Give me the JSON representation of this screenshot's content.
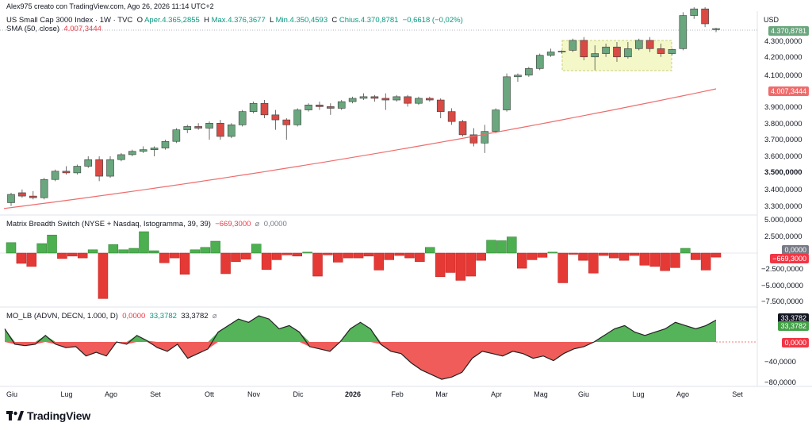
{
  "credit": "Alex975 creato con TradingView.com, Ago 26, 2026 11:14 UTC+2",
  "currency": "USD",
  "price_legend": {
    "title": "US Small Cap 3000 Index · 1W · TVC",
    "o_label": "O",
    "o_text": "Aper.4.365,2855",
    "h_label": "H",
    "h_text": "Max.4.376,3677",
    "l_label": "L",
    "l_text": "Min.4.350,4593",
    "c_label": "C",
    "c_text": "Chius.4.370,8781",
    "change": "−0,6618 (−0,02%)",
    "sma_label": "SMA (50, close)",
    "sma_value": "4.007,3444"
  },
  "breadth_legend": {
    "title": "Matrix Breadth Switch (NYSE + Nasdaq, Istogramma, 39, 39)",
    "value1": "−669,3000",
    "sym": "⌀",
    "value2": "0,0000"
  },
  "mo_legend": {
    "title": "MO_LB (ADVN, DECN, 1.000, D)",
    "value1": "0,0000",
    "value2": "33,3782",
    "value3": "33,3782",
    "sym": "⌀"
  },
  "price_axis": [
    "4.300,0000",
    "4.200,0000",
    "4.100,0000",
    "3.900,0000",
    "3.800,0000",
    "3.700,0000",
    "3.600,0000",
    "3.500,0000",
    "3.400,0000",
    "3.300,0000"
  ],
  "price_tags": {
    "last": "4.370,8781",
    "sma": "4.007,3444"
  },
  "breadth_axis": [
    "5.000,0000",
    "2.500,0000",
    "−2.500,0000",
    "−5.000,0000",
    "−7.500,0000"
  ],
  "breadth_tags": {
    "zero": "0,0000",
    "last": "−669,3000"
  },
  "mo_axis": [
    "−40,0000",
    "−80,0000"
  ],
  "mo_tags": {
    "a": "33,3782",
    "b": "33,3782",
    "zero": "0,0000"
  },
  "x_labels": [
    {
      "text": "Giu",
      "bold": false
    },
    {
      "text": "Lug",
      "bold": false
    },
    {
      "text": "Ago",
      "bold": false
    },
    {
      "text": "Set",
      "bold": false
    },
    {
      "text": "Ott",
      "bold": false
    },
    {
      "text": "Nov",
      "bold": false
    },
    {
      "text": "Dic",
      "bold": false
    },
    {
      "text": "2026",
      "bold": true
    },
    {
      "text": "Feb",
      "bold": false
    },
    {
      "text": "Mar",
      "bold": false
    },
    {
      "text": "Apr",
      "bold": false
    },
    {
      "text": "Mag",
      "bold": false
    },
    {
      "text": "Giu",
      "bold": false
    },
    {
      "text": "Lug",
      "bold": false
    },
    {
      "text": "Ago",
      "bold": false
    },
    {
      "text": "Set",
      "bold": false
    }
  ],
  "logo_text": "TradingView",
  "colors": {
    "up": "#6aa67e",
    "down": "#d94a45",
    "sma": "#ef6c6c",
    "highlight": "#f5f7c4",
    "mo_up": "#4caf50",
    "mo_down": "#ef5350"
  },
  "chart_data": [
    {
      "type": "candlestick",
      "title": "US Small Cap 3000 Index · 1W · TVC",
      "ylabel": "USD",
      "ylim": [
        3260,
        4400
      ],
      "ohlc": [
        [
          3320,
          3380,
          3300,
          3370
        ],
        [
          3380,
          3400,
          3350,
          3360
        ],
        [
          3360,
          3390,
          3340,
          3350
        ],
        [
          3350,
          3470,
          3340,
          3460
        ],
        [
          3460,
          3520,
          3450,
          3510
        ],
        [
          3510,
          3540,
          3490,
          3500
        ],
        [
          3500,
          3550,
          3490,
          3540
        ],
        [
          3540,
          3600,
          3530,
          3580
        ],
        [
          3580,
          3600,
          3450,
          3480
        ],
        [
          3480,
          3600,
          3470,
          3580
        ],
        [
          3580,
          3620,
          3570,
          3610
        ],
        [
          3610,
          3640,
          3600,
          3630
        ],
        [
          3630,
          3660,
          3620,
          3640
        ],
        [
          3640,
          3660,
          3600,
          3650
        ],
        [
          3650,
          3700,
          3640,
          3690
        ],
        [
          3690,
          3770,
          3680,
          3760
        ],
        [
          3760,
          3790,
          3740,
          3780
        ],
        [
          3780,
          3800,
          3760,
          3770
        ],
        [
          3770,
          3810,
          3700,
          3800
        ],
        [
          3800,
          3820,
          3700,
          3720
        ],
        [
          3720,
          3800,
          3710,
          3790
        ],
        [
          3790,
          3880,
          3780,
          3870
        ],
        [
          3870,
          3930,
          3860,
          3920
        ],
        [
          3920,
          3940,
          3830,
          3850
        ],
        [
          3850,
          3880,
          3760,
          3820
        ],
        [
          3820,
          3830,
          3700,
          3790
        ],
        [
          3790,
          3890,
          3780,
          3880
        ],
        [
          3880,
          3920,
          3870,
          3910
        ],
        [
          3910,
          3930,
          3880,
          3900
        ],
        [
          3900,
          3920,
          3850,
          3890
        ],
        [
          3890,
          3940,
          3880,
          3930
        ],
        [
          3930,
          3960,
          3920,
          3950
        ],
        [
          3950,
          3980,
          3940,
          3960
        ],
        [
          3960,
          3970,
          3930,
          3950
        ],
        [
          3950,
          3980,
          3880,
          3940
        ],
        [
          3940,
          3970,
          3930,
          3960
        ],
        [
          3960,
          3970,
          3900,
          3920
        ],
        [
          3920,
          3960,
          3910,
          3950
        ],
        [
          3950,
          3960,
          3930,
          3940
        ],
        [
          3940,
          3950,
          3830,
          3870
        ],
        [
          3870,
          3890,
          3790,
          3810
        ],
        [
          3810,
          3820,
          3720,
          3730
        ],
        [
          3730,
          3770,
          3660,
          3680
        ],
        [
          3680,
          3790,
          3620,
          3750
        ],
        [
          3750,
          3890,
          3740,
          3880
        ],
        [
          3880,
          4100,
          3870,
          4080
        ],
        [
          4080,
          4100,
          4050,
          4090
        ],
        [
          4090,
          4140,
          4080,
          4130
        ],
        [
          4130,
          4220,
          4120,
          4210
        ],
        [
          4210,
          4250,
          4200,
          4230
        ],
        [
          4230,
          4240,
          4220,
          4235
        ],
        [
          4240,
          4310,
          4230,
          4300
        ],
        [
          4300,
          4320,
          4180,
          4200
        ],
        [
          4200,
          4270,
          4120,
          4220
        ],
        [
          4220,
          4280,
          4200,
          4260
        ],
        [
          4260,
          4290,
          4170,
          4200
        ],
        [
          4200,
          4290,
          4190,
          4250
        ],
        [
          4250,
          4310,
          4240,
          4300
        ],
        [
          4300,
          4320,
          4230,
          4250
        ],
        [
          4250,
          4280,
          4200,
          4220
        ],
        [
          4220,
          4250,
          4210,
          4245
        ],
        [
          4250,
          4470,
          4240,
          4450
        ],
        [
          4450,
          4500,
          4430,
          4490
        ],
        [
          4490,
          4500,
          4380,
          4400
        ],
        [
          4365,
          4376,
          4350,
          4371
        ]
      ],
      "sma_50": {
        "start": 3285,
        "end": 4007
      }
    },
    {
      "type": "histogram",
      "title": "Matrix Breadth Switch (NYSE + Nasdaq, Istogramma, 39, 39)",
      "ylim": [
        -8500,
        6000
      ],
      "values": [
        2200,
        -1700,
        -2200,
        2000,
        3800,
        -900,
        -500,
        -800,
        700,
        -7500,
        1800,
        700,
        1000,
        4500,
        500,
        -1600,
        -800,
        -3500,
        700,
        1200,
        2500,
        -3400,
        -1400,
        -1000,
        1900,
        -2700,
        -1100,
        -300,
        -500,
        200,
        -3800,
        -300,
        -1500,
        -800,
        -800,
        -500,
        -2800,
        -1100,
        -400,
        -800,
        -1400,
        1200,
        -3900,
        -3200,
        -4500,
        -3800,
        -1200,
        2700,
        2600,
        3400,
        -2500,
        -1100,
        -700,
        200,
        -4900,
        -200,
        -1200,
        -3300,
        -400,
        -800,
        -1200,
        -400,
        -2000,
        -2200,
        -2900,
        -2400,
        1000,
        -1100,
        -2800,
        -670
      ],
      "last_value": -669.3
    },
    {
      "type": "area",
      "title": "MO_LB (ADVN, DECN, 1.000, D)",
      "ylim": [
        -90,
        40
      ],
      "values": [
        20,
        -5,
        -8,
        -5,
        10,
        -5,
        -12,
        -10,
        -30,
        -22,
        -30,
        0,
        -5,
        10,
        2,
        -12,
        -20,
        -5,
        -35,
        -25,
        -15,
        15,
        25,
        35,
        30,
        40,
        35,
        20,
        25,
        15,
        -10,
        -15,
        -20,
        0,
        20,
        30,
        20,
        -5,
        -20,
        -25,
        -45,
        -60,
        -70,
        -80,
        -75,
        -65,
        -35,
        -20,
        -25,
        -30,
        -20,
        -25,
        -35,
        -30,
        -40,
        -25,
        -15,
        -10,
        0,
        10,
        20,
        25,
        15,
        10,
        15,
        20,
        30,
        25,
        20,
        25,
        33.3782
      ],
      "last_value": 33.3782
    }
  ]
}
